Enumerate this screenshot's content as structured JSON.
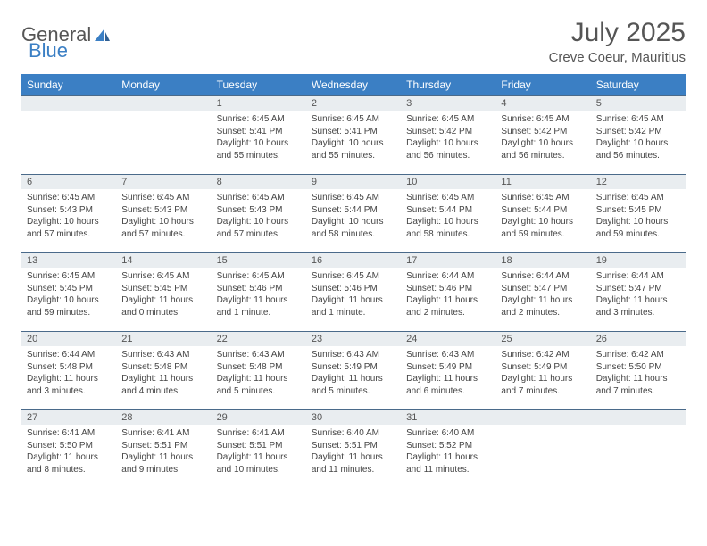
{
  "brand": {
    "word1": "General",
    "word2": "Blue"
  },
  "title": "July 2025",
  "location": "Creve Coeur, Mauritius",
  "colors": {
    "header_bg": "#3b7fc4",
    "header_text": "#ffffff",
    "daynum_bg": "#e9edf0",
    "daynum_border": "#4a6a8a",
    "body_bg": "#ffffff",
    "text": "#444444",
    "title_color": "#555555"
  },
  "weekdays": [
    "Sunday",
    "Monday",
    "Tuesday",
    "Wednesday",
    "Thursday",
    "Friday",
    "Saturday"
  ],
  "weeks": [
    [
      null,
      null,
      {
        "n": "1",
        "sr": "Sunrise: 6:45 AM",
        "ss": "Sunset: 5:41 PM",
        "dl": "Daylight: 10 hours and 55 minutes."
      },
      {
        "n": "2",
        "sr": "Sunrise: 6:45 AM",
        "ss": "Sunset: 5:41 PM",
        "dl": "Daylight: 10 hours and 55 minutes."
      },
      {
        "n": "3",
        "sr": "Sunrise: 6:45 AM",
        "ss": "Sunset: 5:42 PM",
        "dl": "Daylight: 10 hours and 56 minutes."
      },
      {
        "n": "4",
        "sr": "Sunrise: 6:45 AM",
        "ss": "Sunset: 5:42 PM",
        "dl": "Daylight: 10 hours and 56 minutes."
      },
      {
        "n": "5",
        "sr": "Sunrise: 6:45 AM",
        "ss": "Sunset: 5:42 PM",
        "dl": "Daylight: 10 hours and 56 minutes."
      }
    ],
    [
      {
        "n": "6",
        "sr": "Sunrise: 6:45 AM",
        "ss": "Sunset: 5:43 PM",
        "dl": "Daylight: 10 hours and 57 minutes."
      },
      {
        "n": "7",
        "sr": "Sunrise: 6:45 AM",
        "ss": "Sunset: 5:43 PM",
        "dl": "Daylight: 10 hours and 57 minutes."
      },
      {
        "n": "8",
        "sr": "Sunrise: 6:45 AM",
        "ss": "Sunset: 5:43 PM",
        "dl": "Daylight: 10 hours and 57 minutes."
      },
      {
        "n": "9",
        "sr": "Sunrise: 6:45 AM",
        "ss": "Sunset: 5:44 PM",
        "dl": "Daylight: 10 hours and 58 minutes."
      },
      {
        "n": "10",
        "sr": "Sunrise: 6:45 AM",
        "ss": "Sunset: 5:44 PM",
        "dl": "Daylight: 10 hours and 58 minutes."
      },
      {
        "n": "11",
        "sr": "Sunrise: 6:45 AM",
        "ss": "Sunset: 5:44 PM",
        "dl": "Daylight: 10 hours and 59 minutes."
      },
      {
        "n": "12",
        "sr": "Sunrise: 6:45 AM",
        "ss": "Sunset: 5:45 PM",
        "dl": "Daylight: 10 hours and 59 minutes."
      }
    ],
    [
      {
        "n": "13",
        "sr": "Sunrise: 6:45 AM",
        "ss": "Sunset: 5:45 PM",
        "dl": "Daylight: 10 hours and 59 minutes."
      },
      {
        "n": "14",
        "sr": "Sunrise: 6:45 AM",
        "ss": "Sunset: 5:45 PM",
        "dl": "Daylight: 11 hours and 0 minutes."
      },
      {
        "n": "15",
        "sr": "Sunrise: 6:45 AM",
        "ss": "Sunset: 5:46 PM",
        "dl": "Daylight: 11 hours and 1 minute."
      },
      {
        "n": "16",
        "sr": "Sunrise: 6:45 AM",
        "ss": "Sunset: 5:46 PM",
        "dl": "Daylight: 11 hours and 1 minute."
      },
      {
        "n": "17",
        "sr": "Sunrise: 6:44 AM",
        "ss": "Sunset: 5:46 PM",
        "dl": "Daylight: 11 hours and 2 minutes."
      },
      {
        "n": "18",
        "sr": "Sunrise: 6:44 AM",
        "ss": "Sunset: 5:47 PM",
        "dl": "Daylight: 11 hours and 2 minutes."
      },
      {
        "n": "19",
        "sr": "Sunrise: 6:44 AM",
        "ss": "Sunset: 5:47 PM",
        "dl": "Daylight: 11 hours and 3 minutes."
      }
    ],
    [
      {
        "n": "20",
        "sr": "Sunrise: 6:44 AM",
        "ss": "Sunset: 5:48 PM",
        "dl": "Daylight: 11 hours and 3 minutes."
      },
      {
        "n": "21",
        "sr": "Sunrise: 6:43 AM",
        "ss": "Sunset: 5:48 PM",
        "dl": "Daylight: 11 hours and 4 minutes."
      },
      {
        "n": "22",
        "sr": "Sunrise: 6:43 AM",
        "ss": "Sunset: 5:48 PM",
        "dl": "Daylight: 11 hours and 5 minutes."
      },
      {
        "n": "23",
        "sr": "Sunrise: 6:43 AM",
        "ss": "Sunset: 5:49 PM",
        "dl": "Daylight: 11 hours and 5 minutes."
      },
      {
        "n": "24",
        "sr": "Sunrise: 6:43 AM",
        "ss": "Sunset: 5:49 PM",
        "dl": "Daylight: 11 hours and 6 minutes."
      },
      {
        "n": "25",
        "sr": "Sunrise: 6:42 AM",
        "ss": "Sunset: 5:49 PM",
        "dl": "Daylight: 11 hours and 7 minutes."
      },
      {
        "n": "26",
        "sr": "Sunrise: 6:42 AM",
        "ss": "Sunset: 5:50 PM",
        "dl": "Daylight: 11 hours and 7 minutes."
      }
    ],
    [
      {
        "n": "27",
        "sr": "Sunrise: 6:41 AM",
        "ss": "Sunset: 5:50 PM",
        "dl": "Daylight: 11 hours and 8 minutes."
      },
      {
        "n": "28",
        "sr": "Sunrise: 6:41 AM",
        "ss": "Sunset: 5:51 PM",
        "dl": "Daylight: 11 hours and 9 minutes."
      },
      {
        "n": "29",
        "sr": "Sunrise: 6:41 AM",
        "ss": "Sunset: 5:51 PM",
        "dl": "Daylight: 11 hours and 10 minutes."
      },
      {
        "n": "30",
        "sr": "Sunrise: 6:40 AM",
        "ss": "Sunset: 5:51 PM",
        "dl": "Daylight: 11 hours and 11 minutes."
      },
      {
        "n": "31",
        "sr": "Sunrise: 6:40 AM",
        "ss": "Sunset: 5:52 PM",
        "dl": "Daylight: 11 hours and 11 minutes."
      },
      null,
      null
    ]
  ]
}
